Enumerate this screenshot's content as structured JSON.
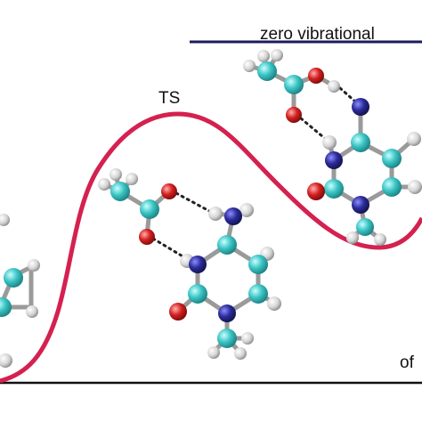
{
  "labels": {
    "top": "zero vibrational",
    "ts": "TS",
    "corner": "of"
  }
}
